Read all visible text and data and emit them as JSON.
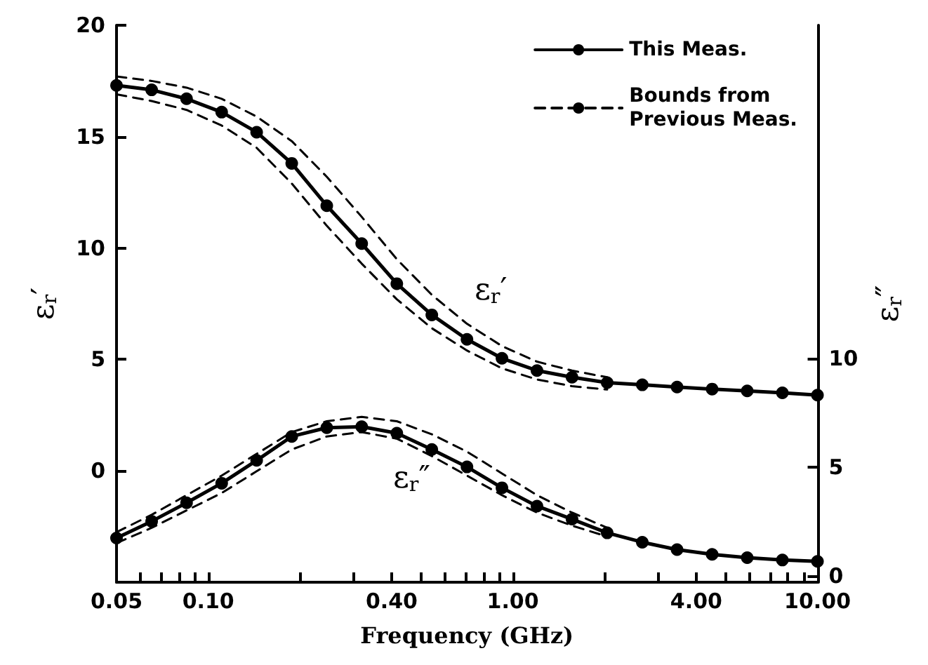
{
  "chart_data": {
    "type": "line",
    "xlabel": "Frequency (GHz)",
    "ylabel": "ε$_{r}$′",
    "y2label": "ε$_{r}$″",
    "log": "x",
    "legend": "top right",
    "grid": false,
    "xlim": [
      0.05,
      10
    ],
    "ylim": [
      -5,
      20
    ],
    "y2lim": [
      -0.3,
      25.3
    ],
    "xticks": [
      {
        "value": 0.05,
        "label": "0.05"
      },
      {
        "value": 0.06,
        "label": null
      },
      {
        "value": 0.07,
        "label": null
      },
      {
        "value": 0.08,
        "label": null
      },
      {
        "value": 0.09,
        "label": null
      },
      {
        "value": 0.1,
        "label": "0.10"
      },
      {
        "value": 0.2,
        "label": null
      },
      {
        "value": 0.3,
        "label": null
      },
      {
        "value": 0.4,
        "label": "0.40"
      },
      {
        "value": 0.5,
        "label": null
      },
      {
        "value": 0.6,
        "label": null
      },
      {
        "value": 0.7,
        "label": null
      },
      {
        "value": 0.8,
        "label": null
      },
      {
        "value": 0.9,
        "label": null
      },
      {
        "value": 1,
        "label": "1.00"
      },
      {
        "value": 2,
        "label": null
      },
      {
        "value": 3,
        "label": null
      },
      {
        "value": 4,
        "label": "4.00"
      },
      {
        "value": 5,
        "label": null
      },
      {
        "value": 6,
        "label": null
      },
      {
        "value": 7,
        "label": null
      },
      {
        "value": 8,
        "label": null
      },
      {
        "value": 9,
        "label": null
      },
      {
        "value": 10,
        "label": "10.00"
      }
    ],
    "yticks": [
      0,
      5,
      10,
      15,
      20
    ],
    "y2ticks": [
      0,
      5,
      10
    ],
    "annotations": [
      "ε$_{r}$′",
      "ε$_{r}$″"
    ],
    "series": [
      {
        "name": "This Meas.",
        "color": "#000000",
        "marker": "circle",
        "line_style": "solid",
        "x": [
          0.05,
          0.0652,
          0.0849,
          0.1107,
          0.1442,
          0.188,
          0.245,
          0.319,
          0.416,
          0.542,
          0.707,
          0.921,
          1.2,
          1.564,
          2.04,
          2.66,
          3.46,
          4.51,
          5.88,
          7.67,
          10
        ],
        "values": [
          17.3,
          17.1,
          16.7,
          16.1,
          15.2,
          13.8,
          11.9,
          10.2,
          8.4,
          7.0,
          5.9,
          5.05,
          4.5,
          4.2,
          3.96,
          3.86,
          3.76,
          3.67,
          3.59,
          3.5,
          3.4
        ]
      },
      {
        "color": "#000000",
        "marker": "circle",
        "line_style": "solid",
        "axis": "y2",
        "x": [
          0.05,
          0.0652,
          0.0849,
          0.1107,
          0.1442,
          0.188,
          0.245,
          0.319,
          0.416,
          0.542,
          0.707,
          0.921,
          1.2,
          1.564,
          2.04,
          2.66,
          3.46,
          4.51,
          5.88,
          7.67,
          10
        ],
        "values": [
          1.73,
          2.5,
          3.35,
          4.25,
          5.3,
          6.4,
          6.8,
          6.85,
          6.55,
          5.8,
          5.0,
          4.04,
          3.2,
          2.6,
          1.97,
          1.54,
          1.2,
          0.98,
          0.83,
          0.72,
          0.66
        ]
      },
      {
        "name": "Bounds from\nPrevious Meas.",
        "color": "#000000",
        "marker": "none",
        "line_style": "dashed",
        "x": [
          0.05,
          0.0652,
          0.0849,
          0.1107,
          0.1442,
          0.188,
          0.245,
          0.319,
          0.416,
          0.542,
          0.707,
          0.921,
          1.2,
          1.564,
          2.04
        ],
        "values": [
          17.7,
          17.5,
          17.2,
          16.7,
          15.9,
          14.8,
          13.2,
          11.4,
          9.5,
          7.9,
          6.6,
          5.6,
          4.9,
          4.5,
          4.2
        ]
      },
      {
        "color": "#000000",
        "marker": "none",
        "line_style": "dashed",
        "x": [
          0.05,
          0.0652,
          0.0849,
          0.1107,
          0.1442,
          0.188,
          0.245,
          0.319,
          0.416,
          0.542,
          0.707,
          0.921,
          1.2,
          1.564,
          2.04
        ],
        "values": [
          16.9,
          16.6,
          16.2,
          15.5,
          14.5,
          12.9,
          11.0,
          9.3,
          7.7,
          6.4,
          5.4,
          4.6,
          4.1,
          3.8,
          3.65
        ]
      },
      {
        "color": "#000000",
        "marker": "none",
        "line_style": "dashed",
        "axis": "y2",
        "x": [
          0.05,
          0.0652,
          0.0849,
          0.1107,
          0.1442,
          0.188,
          0.245,
          0.319,
          0.416,
          0.542,
          0.707,
          0.921,
          1.2,
          1.564,
          2.04
        ],
        "values": [
          2.0,
          2.8,
          3.7,
          4.6,
          5.6,
          6.6,
          7.1,
          7.3,
          7.1,
          6.5,
          5.7,
          4.7,
          3.7,
          2.9,
          2.2
        ]
      },
      {
        "color": "#000000",
        "marker": "none",
        "line_style": "dashed",
        "axis": "y2",
        "x": [
          0.05,
          0.0652,
          0.0849,
          0.1107,
          0.1442,
          0.188,
          0.245,
          0.319,
          0.416,
          0.542,
          0.707,
          0.921,
          1.2,
          1.564,
          2.04
        ],
        "values": [
          1.5,
          2.2,
          3.0,
          3.8,
          4.8,
          5.8,
          6.4,
          6.6,
          6.3,
          5.5,
          4.6,
          3.7,
          2.9,
          2.3,
          1.8
        ]
      }
    ]
  }
}
